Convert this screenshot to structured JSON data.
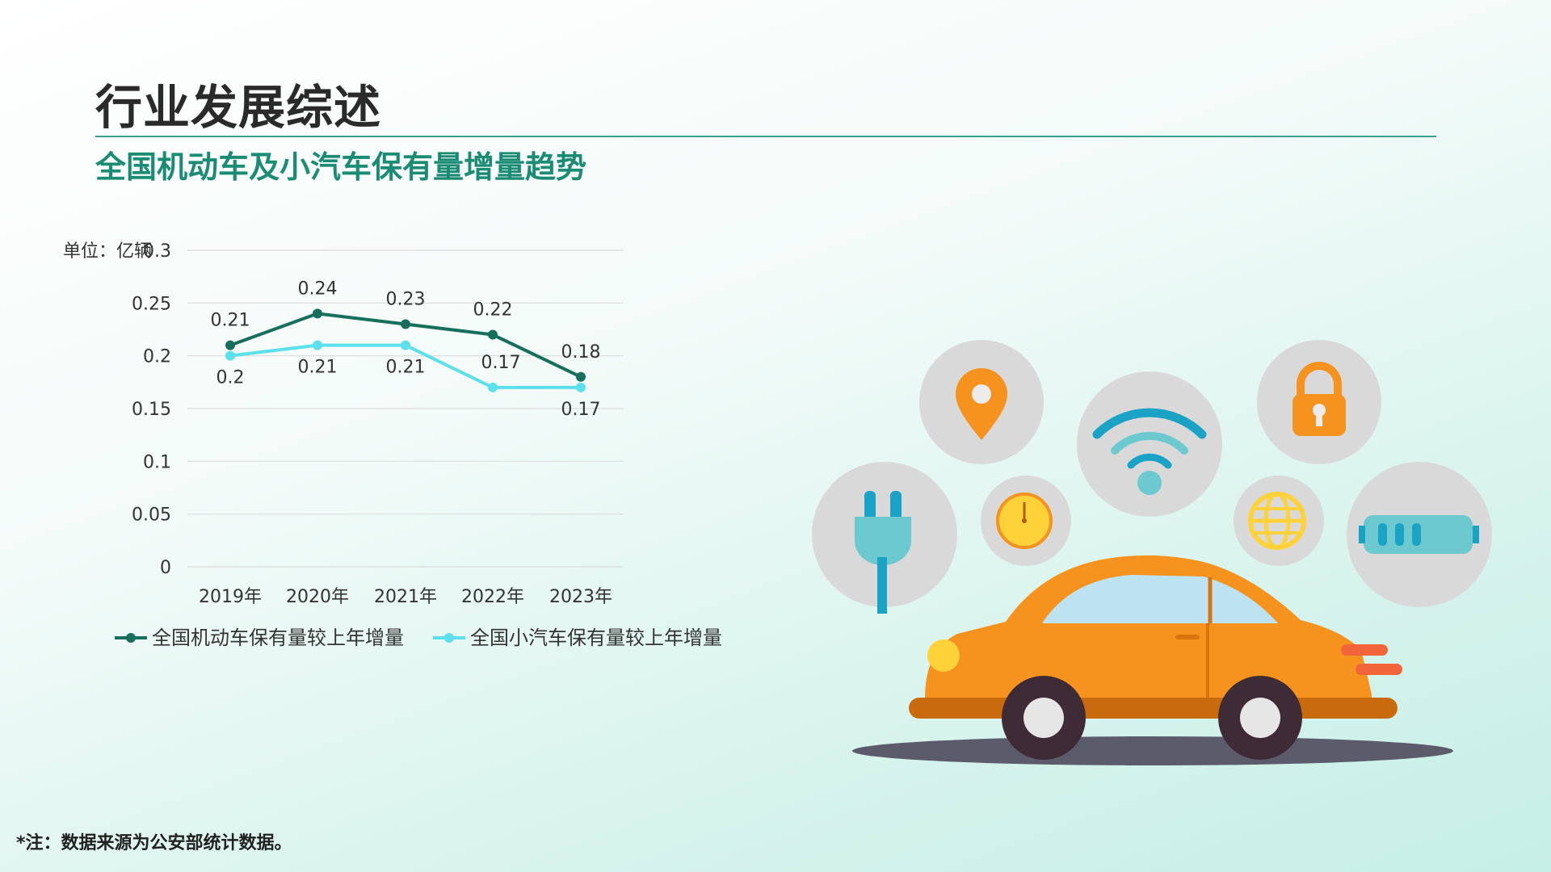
{
  "page": {
    "title": "行业发展综述",
    "subtitle": "全国机动车及小汽车保有量增量趋势",
    "footnote": "*注：数据来源为公安部统计数据。"
  },
  "chart_data": {
    "type": "line",
    "unit_label": "单位：亿辆",
    "categories": [
      "2019年",
      "2020年",
      "2021年",
      "2022年",
      "2023年"
    ],
    "ylim": [
      0,
      0.3
    ],
    "yticks": [
      0,
      0.05,
      0.1,
      0.15,
      0.2,
      0.25,
      0.3
    ],
    "ytick_labels": [
      "0",
      "0.05",
      "0.1",
      "0.15",
      "0.2",
      "0.25",
      "0.3"
    ],
    "grid": true,
    "legend_position": "bottom",
    "series": [
      {
        "name": "全国机动车保有量较上年增量",
        "values": [
          0.21,
          0.24,
          0.23,
          0.22,
          0.18
        ],
        "labels": [
          "0.21",
          "0.24",
          "0.23",
          "0.22",
          "0.18"
        ],
        "label_side": [
          "above",
          "above",
          "above",
          "above",
          "above"
        ],
        "color": "#166f5c"
      },
      {
        "name": "全国小汽车保有量较上年增量",
        "values": [
          0.2,
          0.21,
          0.21,
          0.17,
          0.17
        ],
        "labels": [
          "0.2",
          "0.21",
          "0.21",
          "0.17",
          "0.17"
        ],
        "label_side": [
          "below",
          "below",
          "below",
          "above",
          "below"
        ],
        "color": "#5ce0ec"
      }
    ]
  },
  "illustration": {
    "icons": [
      "power-plug-icon",
      "map-pin-icon",
      "speedometer-icon",
      "wifi-icon",
      "globe-icon",
      "padlock-icon",
      "battery-icon",
      "car-icon"
    ],
    "colors": {
      "circle": "#d9d9d9",
      "orange": "#f5931e",
      "teal": "#1aa3c4",
      "light_teal": "#6cc9cf",
      "car_body": "#f5931e",
      "car_window": "#bde2f2",
      "shadow": "#5b5b6c"
    }
  }
}
